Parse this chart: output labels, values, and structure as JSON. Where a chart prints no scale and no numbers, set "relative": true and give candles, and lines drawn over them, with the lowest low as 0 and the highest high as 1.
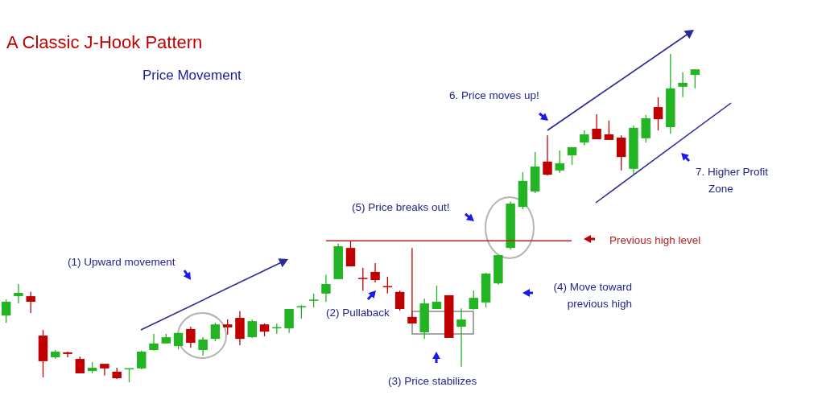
{
  "chart_data": {
    "type": "candlestick",
    "title": "A Classic J-Hook Pattern",
    "subtitle": "Price Movement",
    "relative": true,
    "categories": [
      null,
      null,
      null,
      null,
      null,
      null,
      null,
      null,
      null,
      null,
      null,
      null,
      null,
      null,
      null,
      null,
      null,
      null,
      null,
      null,
      null,
      null,
      null,
      null,
      null,
      null,
      null,
      null,
      null,
      null,
      null,
      null,
      null,
      null,
      null,
      null,
      null,
      null,
      null,
      null,
      null,
      null,
      null,
      null,
      null,
      null,
      null,
      null,
      null,
      null,
      null,
      null,
      null,
      null,
      null,
      null,
      null
    ],
    "ohlc": [
      [
        0.203,
        0.252,
        0.181,
        0.245
      ],
      [
        0.262,
        0.299,
        0.24,
        0.272
      ],
      [
        0.262,
        0.275,
        0.211,
        0.245
      ],
      [
        0.142,
        0.159,
        0.015,
        0.064
      ],
      [
        0.076,
        0.098,
        0.071,
        0.093
      ],
      [
        0.091,
        0.093,
        0.076,
        0.086
      ],
      [
        0.071,
        0.078,
        0.027,
        0.027
      ],
      [
        0.034,
        0.061,
        0.027,
        0.044
      ],
      [
        0.056,
        0.056,
        0.02,
        0.042
      ],
      [
        0.032,
        0.044,
        0.01,
        0.012
      ],
      [
        0.039,
        0.042,
        0,
        0.042
      ],
      [
        0.042,
        0.096,
        0.039,
        0.093
      ],
      [
        0.098,
        0.147,
        0.096,
        0.118
      ],
      [
        0.118,
        0.147,
        0.118,
        0.137
      ],
      [
        0.11,
        0.15,
        0.1,
        0.15
      ],
      [
        0.162,
        0.169,
        0.105,
        0.12
      ],
      [
        0.098,
        0.137,
        0.081,
        0.13
      ],
      [
        0.132,
        0.181,
        0.125,
        0.176
      ],
      [
        0.176,
        0.191,
        0.145,
        0.167
      ],
      [
        0.196,
        0.216,
        0.113,
        0.132
      ],
      [
        0.137,
        0.191,
        0.135,
        0.186
      ],
      [
        0.176,
        0.179,
        0.14,
        0.154
      ],
      [
        0.164,
        0.179,
        0.147,
        0.167
      ],
      [
        0.164,
        0.223,
        0.15,
        0.223
      ],
      [
        0.228,
        0.235,
        0.194,
        0.23
      ],
      [
        0.248,
        0.27,
        0.228,
        0.25
      ],
      [
        0.27,
        0.328,
        0.245,
        0.299
      ],
      [
        0.314,
        0.422,
        0.314,
        0.414
      ],
      [
        0.409,
        0.429,
        0.353,
        0.353
      ],
      [
        0.316,
        0.348,
        0.279,
        0.314
      ],
      [
        0.336,
        0.363,
        0.304,
        0.311
      ],
      [
        0.292,
        0.321,
        0.27,
        0.289
      ],
      [
        0.275,
        0.279,
        0.218,
        0.223
      ],
      [
        0.199,
        0.409,
        0.179,
        0.179
      ],
      [
        0.152,
        0.255,
        0.132,
        0.24
      ],
      [
        0.223,
        0.294,
        0.223,
        0.245
      ],
      [
        0.265,
        0.265,
        0.135,
        0.135
      ],
      [
        0.169,
        0.225,
        0.047,
        0.191
      ],
      [
        0.223,
        0.279,
        0.221,
        0.257
      ],
      [
        0.243,
        0.333,
        0.228,
        0.331
      ],
      [
        0.301,
        0.387,
        0.297,
        0.387
      ],
      [
        0.409,
        0.551,
        0.404,
        0.544
      ],
      [
        0.534,
        0.64,
        0.527,
        0.613
      ],
      [
        0.581,
        0.701,
        0.576,
        0.657
      ],
      [
        0.672,
        0.752,
        0.63,
        0.632
      ],
      [
        0.645,
        0.706,
        0.637,
        0.667
      ],
      [
        0.691,
        0.716,
        0.662,
        0.716
      ],
      [
        0.73,
        0.767,
        0.721,
        0.755
      ],
      [
        0.772,
        0.816,
        0.74,
        0.74
      ],
      [
        0.755,
        0.797,
        0.738,
        0.738
      ],
      [
        0.745,
        0.752,
        0.645,
        0.686
      ],
      [
        0.65,
        0.782,
        0.632,
        0.775
      ],
      [
        0.743,
        0.814,
        0.73,
        0.804
      ],
      [
        0.838,
        0.868,
        0.767,
        0.801
      ],
      [
        0.777,
        1,
        0.757,
        0.895
      ],
      [
        0.9,
        0.944,
        0.868,
        0.912
      ],
      [
        0.936,
        0.953,
        0.895,
        0.953
      ]
    ],
    "colors": [
      "#22b422",
      "#22b422",
      "#c00000",
      "#c00000",
      "#22b422",
      "#c00000",
      "#c00000",
      "#22b422",
      "#c00000",
      "#c00000",
      "#22b422",
      "#22b422",
      "#22b422",
      "#22b422",
      "#22b422",
      "#c00000",
      "#22b422",
      "#22b422",
      "#c00000",
      "#c00000",
      "#22b422",
      "#c00000",
      "#22b422",
      "#22b422",
      "#22b422",
      "#22b422",
      "#22b422",
      "#22b422",
      "#c00000",
      "#c00000",
      "#c00000",
      "#c00000",
      "#c00000",
      "#c00000",
      "#22b422",
      "#22b422",
      "#c00000",
      "#22b422",
      "#22b422",
      "#22b422",
      "#22b422",
      "#22b422",
      "#22b422",
      "#22b422",
      "#c00000",
      "#22b422",
      "#22b422",
      "#22b422",
      "#c00000",
      "#c00000",
      "#c00000",
      "#22b422",
      "#22b422",
      "#c00000",
      "#22b422",
      "#22b422",
      "#22b422"
    ],
    "ref_lines": [
      {
        "axis": "y",
        "value": 0.431,
        "label": "Previous high level",
        "color": "#b22222"
      }
    ],
    "annotations": [
      "(1)  Upward movement",
      "(2)  Pullaback",
      "(3)  Price stabilizes",
      "(4) Move toward previous high",
      "(5) Price breaks out!",
      "6.  Price moves up!",
      "7. Higher Profit Zone"
    ]
  }
}
